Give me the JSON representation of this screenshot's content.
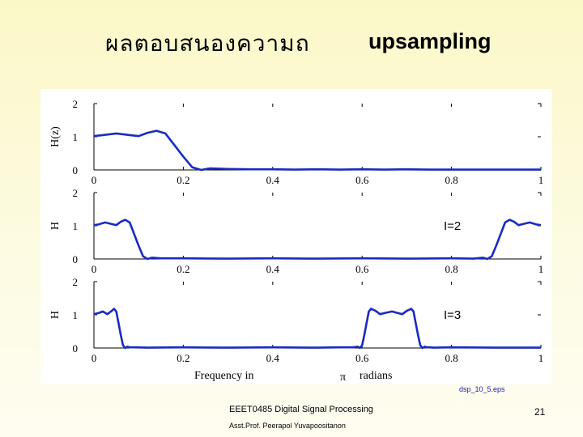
{
  "slide": {
    "title_thai": "ผลตอบสนองความถ",
    "title_en": "upsampling",
    "source_file": "dsp_10_5.eps",
    "course": "EEET0485 Digital Signal Processing",
    "author": "Asst.Prof. Peerapol Yuvapoositanon",
    "page_number": "21"
  },
  "colors": {
    "line": "#1a2bbf",
    "background": "#fdfbe3"
  },
  "chart_data": [
    {
      "type": "line",
      "ylabel": "H(z)",
      "annotation": "",
      "xlim": [
        0,
        1
      ],
      "ylim": [
        0,
        2
      ],
      "xticks": [
        "0",
        "0.2",
        "0.4",
        "0.6",
        "0.8",
        "1"
      ],
      "yticks": [
        "0",
        "1",
        "2"
      ],
      "series": [
        {
          "x": [
            0,
            0.02,
            0.05,
            0.08,
            0.1,
            0.12,
            0.14,
            0.16,
            0.18,
            0.2,
            0.22,
            0.24,
            0.26,
            0.3,
            0.35,
            0.4,
            0.45,
            0.5,
            0.55,
            0.6,
            0.65,
            0.7,
            0.75,
            0.8,
            0.85,
            0.9,
            0.95,
            1.0
          ],
          "values": [
            1.02,
            1.05,
            1.1,
            1.05,
            1.02,
            1.12,
            1.18,
            1.1,
            0.75,
            0.4,
            0.08,
            0.0,
            0.05,
            0.03,
            0.02,
            0.02,
            0.01,
            0.02,
            0.01,
            0.02,
            0.01,
            0.02,
            0.01,
            0.01,
            0.01,
            0.01,
            0.01,
            0.01
          ]
        }
      ]
    },
    {
      "type": "line",
      "ylabel": "H",
      "annotation": "I=2",
      "xlim": [
        0,
        1
      ],
      "ylim": [
        0,
        2
      ],
      "xticks": [
        "0",
        "0.2",
        "0.4",
        "0.6",
        "0.8",
        "1"
      ],
      "yticks": [
        "0",
        "1",
        "2"
      ],
      "series": [
        {
          "x": [
            0,
            0.01,
            0.025,
            0.04,
            0.05,
            0.06,
            0.07,
            0.08,
            0.09,
            0.1,
            0.11,
            0.12,
            0.13,
            0.15,
            0.2,
            0.3,
            0.4,
            0.5,
            0.6,
            0.7,
            0.8,
            0.85,
            0.87,
            0.88,
            0.89,
            0.9,
            0.91,
            0.92,
            0.93,
            0.94,
            0.95,
            0.96,
            0.975,
            0.99,
            1.0
          ],
          "values": [
            1.02,
            1.04,
            1.1,
            1.05,
            1.02,
            1.12,
            1.18,
            1.1,
            0.75,
            0.4,
            0.08,
            0.0,
            0.04,
            0.02,
            0.02,
            0.01,
            0.02,
            0.01,
            0.02,
            0.01,
            0.02,
            0.01,
            0.04,
            0.0,
            0.08,
            0.4,
            0.75,
            1.1,
            1.18,
            1.12,
            1.02,
            1.05,
            1.1,
            1.04,
            1.02
          ]
        }
      ]
    },
    {
      "type": "line",
      "ylabel": "H",
      "annotation": "I=3",
      "xlim": [
        0,
        1
      ],
      "ylim": [
        0,
        2
      ],
      "xticks": [
        "0",
        "0.2",
        "0.4",
        "0.6",
        "0.8",
        "1"
      ],
      "yticks": [
        "0",
        "1",
        "2"
      ],
      "series": [
        {
          "x": [
            0,
            0.01,
            0.02,
            0.03,
            0.04,
            0.045,
            0.05,
            0.055,
            0.06,
            0.065,
            0.07,
            0.075,
            0.08,
            0.09,
            0.12,
            0.2,
            0.3,
            0.4,
            0.5,
            0.55,
            0.58,
            0.59,
            0.595,
            0.6,
            0.605,
            0.61,
            0.615,
            0.62,
            0.63,
            0.64,
            0.65,
            0.667,
            0.68,
            0.69,
            0.7,
            0.71,
            0.715,
            0.72,
            0.725,
            0.73,
            0.735,
            0.74,
            0.745,
            0.75,
            0.76,
            0.8,
            0.9,
            1.0
          ],
          "values": [
            1.02,
            1.05,
            1.1,
            1.02,
            1.12,
            1.18,
            1.1,
            0.75,
            0.4,
            0.08,
            0.0,
            0.04,
            0.02,
            0.02,
            0.01,
            0.02,
            0.01,
            0.02,
            0.01,
            0.02,
            0.02,
            0.04,
            0.0,
            0.08,
            0.4,
            0.75,
            1.1,
            1.18,
            1.12,
            1.02,
            1.05,
            1.1,
            1.05,
            1.02,
            1.12,
            1.18,
            1.1,
            0.75,
            0.4,
            0.08,
            0.0,
            0.04,
            0.02,
            0.02,
            0.01,
            0.02,
            0.01,
            0.01
          ]
        }
      ]
    }
  ],
  "xlabel_parts": {
    "before": "Frequency in",
    "symbol": "π",
    "after": "radians"
  }
}
